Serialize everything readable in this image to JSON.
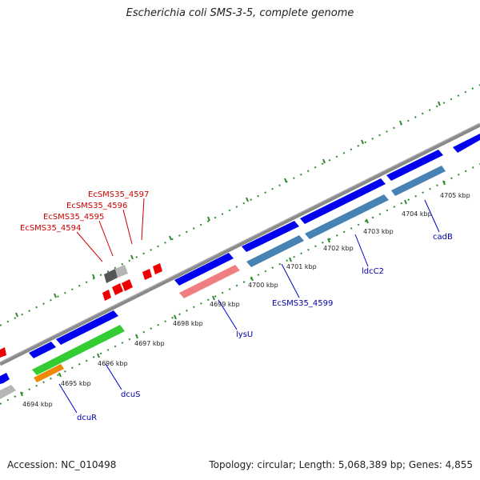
{
  "title": "Escherichia coli SMS-3-5, complete genome",
  "footer": {
    "accession": "Accession: NC_010498",
    "summary": "Topology: circular; Length: 5,068,389 bp; Genes: 4,855"
  },
  "colors": {
    "background": "#ffffff",
    "backbone": "#8a8a8a",
    "dotted_track": "#2e8b2e",
    "forward_gene": "#0000ee",
    "reverse_gene": "#4682b4",
    "rna_gene": "#f08080",
    "green_gene": "#33cc33",
    "orange_gene": "#ee8800",
    "gray_gene": "#b5b5b5",
    "dark_gray_gene": "#555555",
    "red_gene": "#ee0000",
    "label_blue": "#0000aa",
    "label_red": "#cc0000"
  },
  "scale": {
    "unit": "kbp",
    "ticks": [
      "4694 kbp",
      "4695 kbp",
      "4696 kbp",
      "4697 kbp",
      "4698 kbp",
      "4699 kbp",
      "4700 kbp",
      "4701 kbp",
      "4702 kbp",
      "4703 kbp",
      "4704 kbp",
      "4705 kbp"
    ]
  },
  "gene_labels": {
    "red": [
      "EcSMS35_4597",
      "EcSMS35_4596",
      "EcSMS35_4595",
      "EcSMS35_4594"
    ],
    "blue": [
      "dcuR",
      "dcuS",
      "lysU",
      "EcSMS35_4599",
      "ldcC2",
      "cadB"
    ]
  }
}
